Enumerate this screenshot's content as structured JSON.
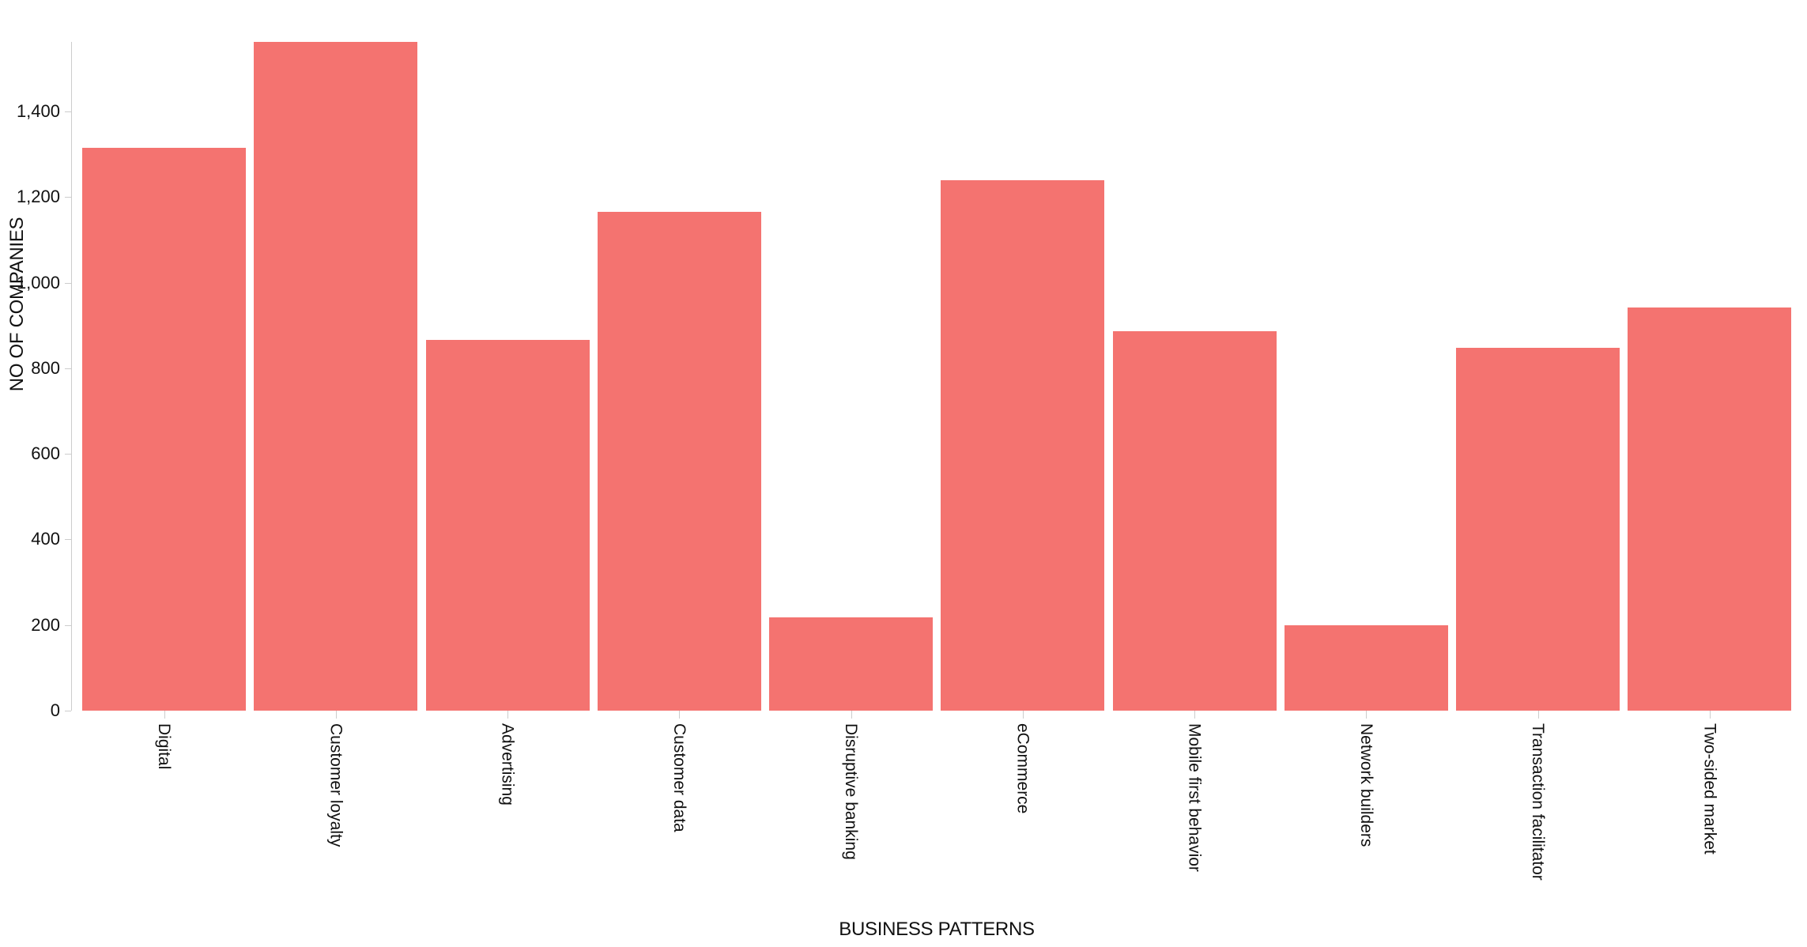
{
  "chart_data": {
    "type": "bar",
    "title": "",
    "xlabel": "BUSINESS PATTERNS",
    "ylabel": "NO OF COMPANIES",
    "categories": [
      "Digital",
      "Customer loyalty",
      "Advertising",
      "Customer data",
      "Disruptive banking",
      "eCommerce",
      "Mobile first behavior",
      "Network builders",
      "Transaction facilitator",
      "Two-sided market"
    ],
    "values": [
      1316,
      1563,
      866,
      1166,
      218,
      1239,
      887,
      200,
      848,
      942
    ],
    "y_ticks": [
      0,
      200,
      400,
      600,
      800,
      1000,
      1200,
      1400
    ],
    "ylim": [
      0,
      1563
    ],
    "grid": false,
    "legend": "none",
    "bar_color": "#f47370",
    "axis_line_color": "#cccccc",
    "text_color": "#111111",
    "background_color": "#ffffff"
  }
}
